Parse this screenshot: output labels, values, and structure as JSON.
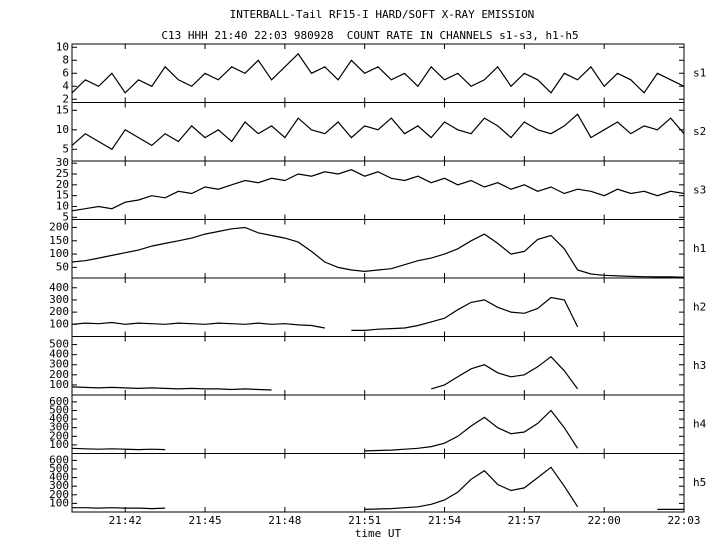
{
  "chart_data": [
    {
      "type": "line",
      "title": "INTERBALL-Tail RF15-I HARD/SOFT X-RAY EMISSION",
      "subtitle": "C13 HHH 21:40 22:03 980928  COUNT RATE IN CHANNELS s1-s3, h1-h5",
      "label": "s1",
      "ylim": [
        1.5,
        10.5
      ],
      "yticks": [
        2,
        4,
        6,
        8,
        10
      ],
      "color": "#000000",
      "values": [
        3,
        5,
        4,
        6,
        3,
        5,
        4,
        7,
        5,
        4,
        6,
        5,
        7,
        6,
        8,
        5,
        7,
        9,
        6,
        7,
        5,
        8,
        6,
        7,
        5,
        6,
        4,
        7,
        5,
        6,
        4,
        5,
        7,
        4,
        6,
        5,
        3,
        6,
        5,
        7,
        4,
        6,
        5,
        3,
        6,
        5,
        4
      ]
    },
    {
      "type": "line",
      "label": "s2",
      "ylim": [
        2,
        17
      ],
      "yticks": [
        5,
        10,
        15
      ],
      "color": "#000000",
      "values": [
        6,
        9,
        7,
        5,
        10,
        8,
        6,
        9,
        7,
        11,
        8,
        10,
        7,
        12,
        9,
        11,
        8,
        13,
        10,
        9,
        12,
        8,
        11,
        10,
        13,
        9,
        11,
        8,
        12,
        10,
        9,
        13,
        11,
        8,
        12,
        10,
        9,
        11,
        14,
        8,
        10,
        12,
        9,
        11,
        10,
        13,
        9
      ]
    },
    {
      "type": "line",
      "label": "s3",
      "ylim": [
        4,
        31
      ],
      "yticks": [
        5,
        10,
        15,
        20,
        25,
        30
      ],
      "color": "#000000",
      "values": [
        8,
        9,
        10,
        9,
        12,
        13,
        15,
        14,
        17,
        16,
        19,
        18,
        20,
        22,
        21,
        23,
        22,
        25,
        24,
        26,
        25,
        27,
        24,
        26,
        23,
        22,
        24,
        21,
        23,
        20,
        22,
        19,
        21,
        18,
        20,
        17,
        19,
        16,
        18,
        17,
        15,
        18,
        16,
        17,
        15,
        17,
        16
      ]
    },
    {
      "type": "line",
      "label": "h1",
      "ylim": [
        10,
        230
      ],
      "yticks": [
        50,
        100,
        150,
        200
      ],
      "color": "#000000",
      "values": [
        70,
        75,
        85,
        95,
        105,
        115,
        130,
        140,
        150,
        160,
        175,
        185,
        195,
        200,
        180,
        170,
        160,
        145,
        110,
        70,
        50,
        40,
        35,
        40,
        45,
        60,
        75,
        85,
        100,
        120,
        150,
        175,
        140,
        100,
        110,
        155,
        170,
        120,
        40,
        25,
        20,
        18,
        16,
        15,
        14,
        14,
        13
      ]
    },
    {
      "type": "line",
      "label": "h2",
      "ylim": [
        0,
        480
      ],
      "yticks": [
        100,
        200,
        300,
        400
      ],
      "color": "#000000",
      "values": [
        100,
        110,
        105,
        115,
        100,
        110,
        105,
        100,
        110,
        105,
        100,
        110,
        105,
        100,
        110,
        100,
        105,
        95,
        90,
        70,
        null,
        50,
        50,
        60,
        65,
        70,
        90,
        120,
        150,
        220,
        280,
        300,
        240,
        200,
        190,
        230,
        320,
        300,
        80,
        null,
        null,
        null,
        null,
        null,
        null,
        null,
        null
      ]
    },
    {
      "type": "line",
      "label": "h3",
      "ylim": [
        0,
        580
      ],
      "yticks": [
        100,
        200,
        300,
        400,
        500
      ],
      "color": "#000000",
      "values": [
        80,
        75,
        70,
        75,
        70,
        65,
        70,
        65,
        60,
        65,
        60,
        60,
        55,
        60,
        55,
        50,
        null,
        null,
        null,
        null,
        null,
        null,
        null,
        null,
        null,
        null,
        null,
        60,
        100,
        180,
        260,
        300,
        220,
        180,
        200,
        280,
        380,
        240,
        60,
        null,
        null,
        null,
        null,
        null,
        null,
        null,
        null
      ]
    },
    {
      "type": "line",
      "label": "h4",
      "ylim": [
        0,
        680
      ],
      "yticks": [
        100,
        200,
        300,
        400,
        500,
        600
      ],
      "color": "#000000",
      "values": [
        60,
        55,
        50,
        55,
        50,
        45,
        50,
        45,
        null,
        null,
        null,
        null,
        null,
        null,
        null,
        null,
        null,
        null,
        null,
        null,
        null,
        null,
        30,
        35,
        40,
        50,
        60,
        80,
        120,
        200,
        320,
        420,
        300,
        230,
        250,
        350,
        500,
        300,
        60,
        null,
        null,
        null,
        null,
        null,
        null,
        null,
        null
      ]
    },
    {
      "type": "line",
      "label": "h5",
      "ylim": [
        0,
        680
      ],
      "yticks": [
        100,
        200,
        300,
        400,
        500,
        600
      ],
      "color": "#000000",
      "values": [
        50,
        50,
        45,
        50,
        45,
        45,
        40,
        45,
        null,
        null,
        null,
        null,
        null,
        null,
        null,
        null,
        null,
        null,
        null,
        null,
        null,
        null,
        30,
        35,
        40,
        50,
        60,
        90,
        140,
        230,
        380,
        480,
        320,
        250,
        280,
        400,
        520,
        300,
        60,
        null,
        null,
        null,
        null,
        null,
        30,
        30,
        30
      ],
      "x": [
        1300,
        1300.5,
        1301,
        1301.5,
        1302,
        1302.5,
        1303,
        1303.5,
        1304,
        1304.5,
        1305,
        1305.5,
        1306,
        1306.5,
        1307,
        1307.5,
        1308,
        1308.5,
        1309,
        1309.5,
        1310,
        1310.5,
        1311,
        1311.5,
        1312,
        1312.5,
        1313,
        1313.5,
        1314,
        1314.5,
        1315,
        1315.5,
        1316,
        1316.5,
        1317,
        1317.5,
        1318,
        1318.5,
        1319,
        1319.5,
        1320,
        1320.5,
        1321,
        1321.5,
        1322,
        1322.5,
        1323
      ],
      "xlim": [
        1300,
        1323
      ],
      "xticks": [
        {
          "value": 1302,
          "label": "21:42"
        },
        {
          "value": 1305,
          "label": "21:45"
        },
        {
          "value": 1308,
          "label": "21:48"
        },
        {
          "value": 1311,
          "label": "21:51"
        },
        {
          "value": 1314,
          "label": "21:54"
        },
        {
          "value": 1317,
          "label": "21:57"
        },
        {
          "value": 1320,
          "label": "22:00"
        },
        {
          "value": 1323,
          "label": "22:03"
        }
      ],
      "xlabel": "time UT"
    }
  ]
}
